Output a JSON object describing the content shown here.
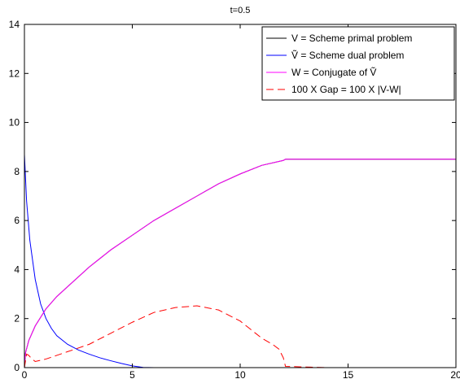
{
  "chart_data": {
    "type": "line",
    "title": "t=0.5",
    "xlabel": "",
    "ylabel": "",
    "xlim": [
      0,
      20
    ],
    "ylim": [
      0,
      14
    ],
    "xticks": [
      "0",
      "5",
      "10",
      "15",
      "20"
    ],
    "yticks": [
      "0",
      "2",
      "4",
      "6",
      "8",
      "10",
      "12",
      "14"
    ],
    "legend_position": "top-right",
    "grid": false,
    "series": [
      {
        "name": "V = Scheme primal problem",
        "color": "#000000",
        "dash": "solid",
        "x": [
          0,
          0.05,
          0.2,
          0.5,
          1,
          1.5,
          2,
          3,
          4,
          5,
          6,
          7,
          8,
          9,
          10,
          11,
          12,
          12.1,
          14,
          16,
          18,
          20
        ],
        "y": [
          0,
          0.6,
          1.1,
          1.7,
          2.4,
          2.9,
          3.3,
          4.1,
          4.8,
          5.4,
          6.0,
          6.5,
          7.0,
          7.5,
          7.9,
          8.25,
          8.45,
          8.5,
          8.5,
          8.5,
          8.5,
          8.5
        ]
      },
      {
        "name": "Ṽ = Scheme dual problem",
        "color": "#0000ff",
        "dash": "solid",
        "x": [
          0,
          0.1,
          0.25,
          0.5,
          0.75,
          1,
          1.25,
          1.5,
          2,
          2.5,
          3,
          3.5,
          4,
          4.5,
          5,
          5.5,
          6,
          8,
          10,
          12,
          14,
          16,
          18,
          20
        ],
        "y": [
          8.7,
          6.8,
          5.2,
          3.6,
          2.6,
          2.0,
          1.6,
          1.3,
          0.95,
          0.72,
          0.55,
          0.4,
          0.28,
          0.17,
          0.07,
          0.01,
          0,
          0,
          0,
          0,
          0,
          0,
          0,
          0
        ]
      },
      {
        "name": "W = Conjugate of Ṽ",
        "color": "#ff00ff",
        "dash": "solid",
        "x": [
          0,
          0.05,
          0.2,
          0.5,
          1,
          1.5,
          2,
          3,
          4,
          5,
          6,
          7,
          8,
          9,
          10,
          11,
          12,
          12.1,
          14,
          16,
          18,
          20
        ],
        "y": [
          0,
          0.6,
          1.1,
          1.7,
          2.4,
          2.9,
          3.3,
          4.1,
          4.8,
          5.4,
          6.0,
          6.5,
          7.0,
          7.5,
          7.9,
          8.25,
          8.45,
          8.5,
          8.5,
          8.5,
          8.5,
          8.5
        ]
      },
      {
        "name": "100 X Gap = 100 X |V-W|",
        "color": "#ff0000",
        "dash": "dashed",
        "x": [
          0,
          0.1,
          0.2,
          0.35,
          0.5,
          1,
          1.5,
          2,
          3,
          4,
          5,
          6,
          7,
          8,
          9,
          10,
          10.5,
          11,
          11.5,
          11.8,
          12,
          12.1,
          14,
          16,
          18,
          20
        ],
        "y": [
          0,
          0.55,
          0.5,
          0.35,
          0.25,
          0.35,
          0.5,
          0.65,
          0.95,
          1.4,
          1.85,
          2.25,
          2.45,
          2.52,
          2.35,
          1.9,
          1.55,
          1.2,
          0.95,
          0.75,
          0.4,
          0.05,
          0,
          0,
          0,
          0
        ]
      }
    ]
  }
}
